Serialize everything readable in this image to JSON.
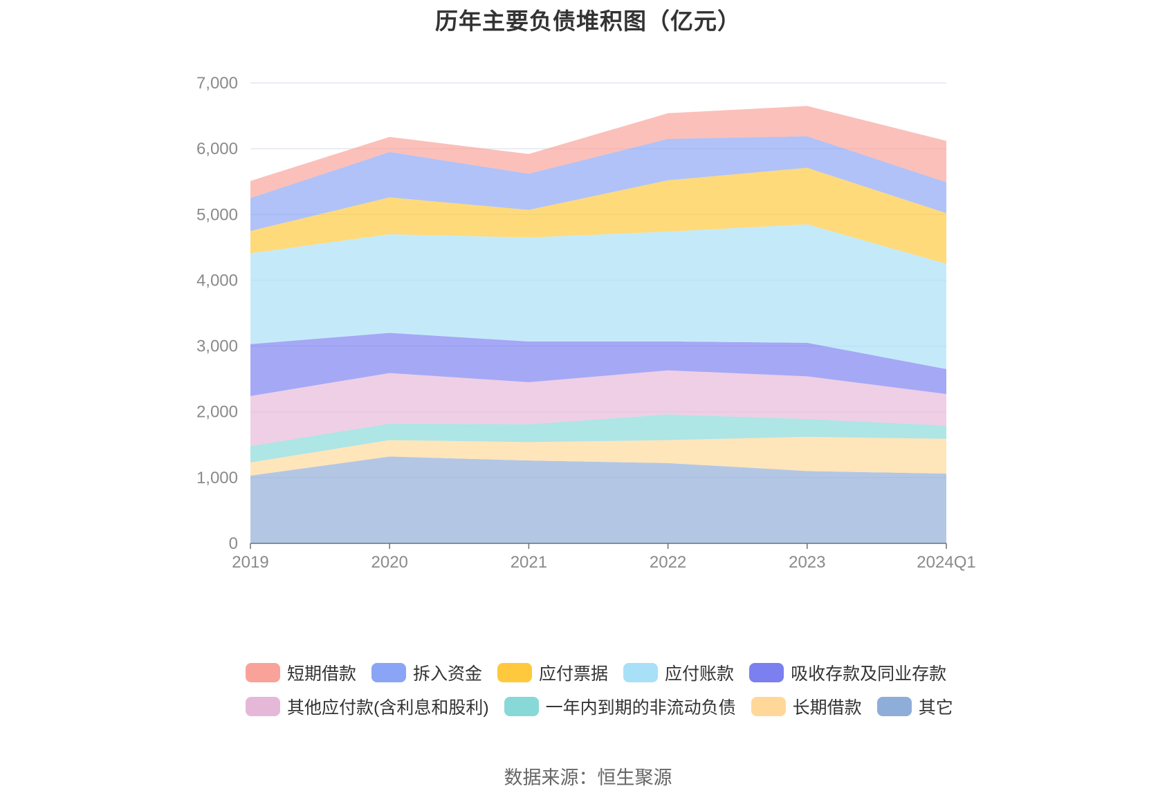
{
  "chart_data": {
    "type": "area",
    "stacked": true,
    "title": "历年主要负债堆积图（亿元）",
    "categories": [
      "2019",
      "2020",
      "2021",
      "2022",
      "2023",
      "2024Q1"
    ],
    "ylim": [
      0,
      7000
    ],
    "yticks": [
      0,
      1000,
      2000,
      3000,
      4000,
      5000,
      6000,
      7000
    ],
    "ytick_labels": [
      "0",
      "1,000",
      "2,000",
      "3,000",
      "4,000",
      "5,000",
      "6,000",
      "7,000"
    ],
    "grid": true,
    "legend_position": "bottom",
    "series": [
      {
        "name": "其它",
        "color": "#8fadd9",
        "values": [
          1030,
          1320,
          1260,
          1220,
          1100,
          1060
        ]
      },
      {
        "name": "长期借款",
        "color": "#ffd899",
        "values": [
          200,
          250,
          280,
          350,
          520,
          530
        ]
      },
      {
        "name": "一年内到期的非流动负债",
        "color": "#88d8d8",
        "values": [
          250,
          250,
          270,
          390,
          270,
          200
        ]
      },
      {
        "name": "其他应付款(含利息和股利)",
        "color": "#e6b8d8",
        "values": [
          760,
          770,
          640,
          670,
          650,
          480
        ]
      },
      {
        "name": "吸收存款及同业存款",
        "color": "#7b7ff0",
        "values": [
          790,
          610,
          620,
          440,
          510,
          380
        ]
      },
      {
        "name": "应付账款",
        "color": "#a8e0f8",
        "values": [
          1380,
          1500,
          1580,
          1670,
          1800,
          1600
        ]
      },
      {
        "name": "应付票据",
        "color": "#ffc83d",
        "values": [
          340,
          560,
          420,
          780,
          860,
          770
        ]
      },
      {
        "name": "拆入资金",
        "color": "#8aa5f5",
        "values": [
          500,
          690,
          550,
          630,
          480,
          470
        ]
      },
      {
        "name": "短期借款",
        "color": "#f9a29a",
        "values": [
          260,
          230,
          300,
          390,
          460,
          630
        ]
      }
    ]
  },
  "legend_rows": [
    [
      "短期借款",
      "拆入资金",
      "应付票据",
      "应付账款",
      "吸收存款及同业存款"
    ],
    [
      "其他应付款(含利息和股利)",
      "一年内到期的非流动负债",
      "长期借款",
      "其它"
    ]
  ],
  "source": "数据来源：恒生聚源"
}
